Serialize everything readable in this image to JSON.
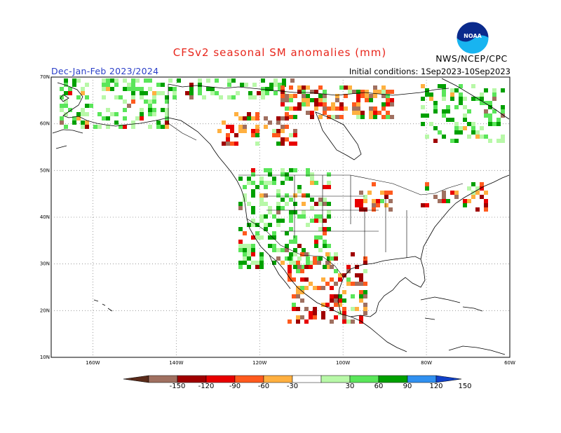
{
  "header": {
    "title": "CFSv2 seasonal SM anomalies (mm)",
    "period": "Dec-Jan-Feb 2023/2024",
    "initial_conditions": "Initial conditions: 1Sep2023-10Sep2023",
    "agency": "NWS/NCEP/CPC",
    "logo_text": "NOAA"
  },
  "map": {
    "lat_labels": [
      "70N",
      "60N",
      "50N",
      "40N",
      "30N",
      "20N",
      "10N"
    ],
    "lon_labels": [
      "160W",
      "140W",
      "120W",
      "100W",
      "80W",
      "60W"
    ],
    "extent": {
      "lon_min": -170,
      "lon_max": -60,
      "lat_min": 10,
      "lat_max": 70
    }
  },
  "legend": {
    "labels": [
      "-150",
      "-120",
      "-90",
      "-60",
      "-30",
      "30",
      "60",
      "90",
      "120",
      "150"
    ],
    "colors": [
      "#5a2b1a",
      "#a07060",
      "#a00000",
      "#e80000",
      "#ff5a1e",
      "#ffb040",
      "#ffffff",
      "#b8f8a8",
      "#5ae65a",
      "#00a000",
      "#3090f0",
      "#1040c8"
    ]
  }
}
